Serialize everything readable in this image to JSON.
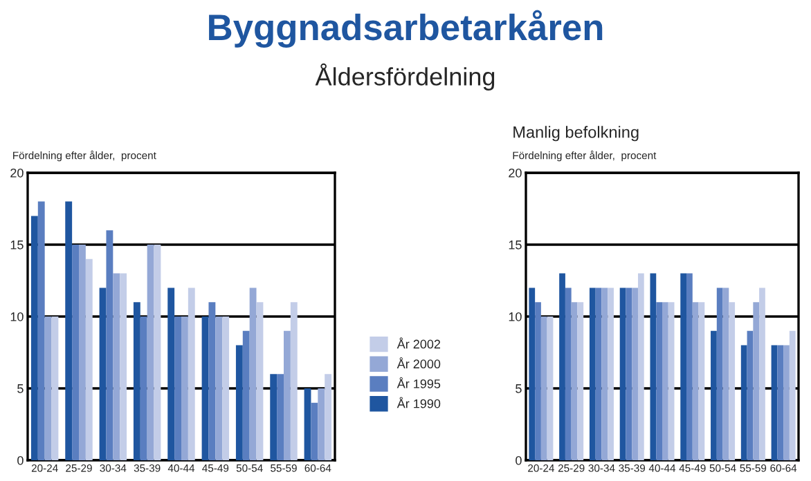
{
  "chart_data": [
    {
      "type": "bar",
      "title": "Byggnadsarbetarkåren",
      "subtitle": "Åldersfördelning",
      "ylabel": "Fördelning efter ålder,  procent",
      "categories": [
        "20-24",
        "25-29",
        "30-34",
        "35-39",
        "40-44",
        "45-49",
        "50-54",
        "55-59",
        "60-64"
      ],
      "series": [
        {
          "name": "År 1990",
          "color": "#1f56a0",
          "values": [
            17,
            18,
            12,
            11,
            12,
            10,
            8,
            6,
            5
          ]
        },
        {
          "name": "År 1995",
          "color": "#5a7ec0",
          "values": [
            18,
            15,
            16,
            10,
            10,
            11,
            9,
            6,
            4
          ]
        },
        {
          "name": "År 2000",
          "color": "#94a8d6",
          "values": [
            10,
            15,
            13,
            15,
            10,
            10,
            12,
            9,
            5
          ]
        },
        {
          "name": "År 2002",
          "color": "#c3cde8",
          "values": [
            10,
            14,
            13,
            15,
            12,
            10,
            11,
            11,
            6
          ]
        }
      ],
      "ylim": [
        0,
        20
      ],
      "yticks": [
        0,
        5,
        10,
        15,
        20
      ],
      "grid": "y",
      "legend": "right"
    },
    {
      "type": "bar",
      "title": "Manlig befolkning",
      "ylabel": "Fördelning efter ålder,  procent",
      "categories": [
        "20-24",
        "25-29",
        "30-34",
        "35-39",
        "40-44",
        "45-49",
        "50-54",
        "55-59",
        "60-64"
      ],
      "series": [
        {
          "color": "#1f56a0",
          "values": [
            12,
            13,
            12,
            12,
            13,
            13,
            9,
            8,
            8
          ]
        },
        {
          "color": "#5a7ec0",
          "values": [
            11,
            12,
            12,
            12,
            11,
            13,
            12,
            9,
            8
          ]
        },
        {
          "color": "#94a8d6",
          "values": [
            10,
            11,
            12,
            12,
            11,
            11,
            12,
            11,
            8
          ]
        },
        {
          "color": "#c3cde8",
          "values": [
            10,
            11,
            12,
            13,
            11,
            11,
            11,
            12,
            9
          ]
        }
      ],
      "ylim": [
        0,
        20
      ],
      "yticks": [
        0,
        5,
        10,
        15,
        20
      ],
      "grid": "y"
    }
  ]
}
